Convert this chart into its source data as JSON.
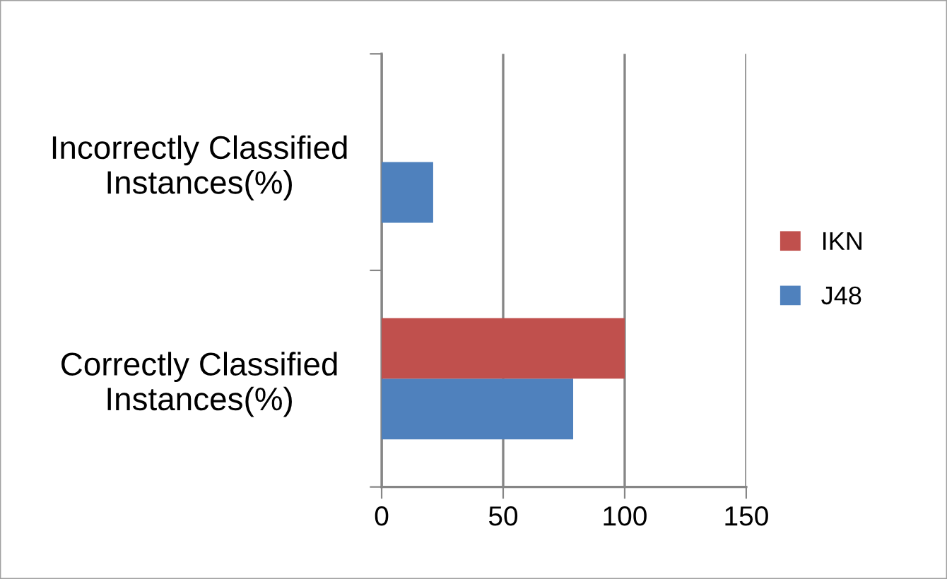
{
  "chart_data": {
    "type": "bar",
    "orientation": "horizontal",
    "categories": [
      "Incorrectly Classified\nInstances(%)",
      "Correctly Classified\nInstances(%)"
    ],
    "series": [
      {
        "name": "J48",
        "color": "#4f81bd",
        "values": [
          21.2,
          78.8
        ]
      },
      {
        "name": "IKN",
        "color": "#c0504d",
        "values": [
          0,
          100
        ]
      }
    ],
    "xlim": [
      0,
      150
    ],
    "xticks": [
      0,
      50,
      100,
      150
    ],
    "grid": "x",
    "legend": "right"
  }
}
